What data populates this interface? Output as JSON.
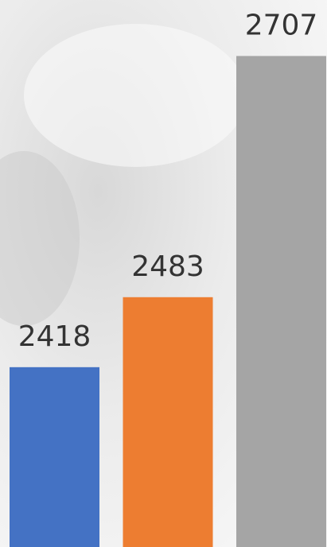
{
  "chart_data": {
    "type": "bar",
    "categories": [
      null,
      null,
      null
    ],
    "series": [
      {
        "color": "#4472c4",
        "values": [
          2418,
          null,
          null
        ]
      },
      {
        "color": "#ed7d31",
        "values": [
          null,
          2483,
          null
        ]
      },
      {
        "color": "#a5a5a5",
        "values": [
          null,
          null,
          2707
        ]
      }
    ],
    "ylim": [
      2251,
      2759
    ]
  }
}
